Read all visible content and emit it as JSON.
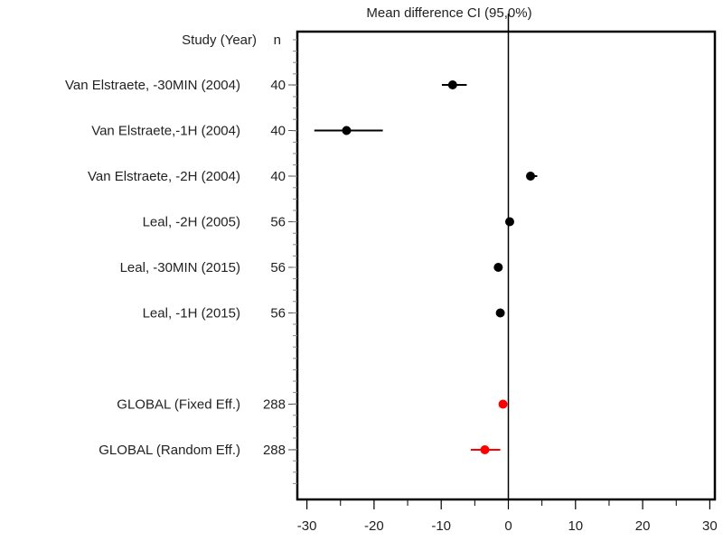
{
  "chart_data": {
    "type": "forest",
    "title": "Mean difference CI  (95,0%)",
    "header": {
      "study": "Study  (Year)",
      "n": "n"
    },
    "xlim": [
      -32,
      31
    ],
    "xticks": [
      -30,
      -20,
      -10,
      0,
      10,
      20,
      30
    ],
    "xtick_labels": [
      "-30",
      "-20",
      "-10",
      "0",
      "10",
      "20",
      "30"
    ],
    "reference_line": 0,
    "studies": [
      {
        "label": "Van Elstraete, -30MIN (2004)",
        "n": "40",
        "mean": -8.3,
        "lo": -9.9,
        "hi": -6.2,
        "color": "#000000"
      },
      {
        "label": "Van Elstraete,-1H (2004)",
        "n": "40",
        "mean": -24.1,
        "lo": -28.9,
        "hi": -18.7,
        "color": "#000000"
      },
      {
        "label": "Van Elstraete, -2H (2004)",
        "n": "40",
        "mean": 3.3,
        "lo": 2.8,
        "hi": 4.3,
        "color": "#000000"
      },
      {
        "label": "Leal, -2H (2005)",
        "n": "56",
        "mean": 0.2,
        "lo": -0.1,
        "hi": 0.5,
        "color": "#000000"
      },
      {
        "label": "Leal, -30MIN (2015)",
        "n": "56",
        "mean": -1.5,
        "lo": -1.8,
        "hi": -1.2,
        "color": "#000000"
      },
      {
        "label": "Leal, -1H (2015)",
        "n": "56",
        "mean": -1.2,
        "lo": -1.5,
        "hi": -0.9,
        "color": "#000000"
      }
    ],
    "pooled": [
      {
        "label": "GLOBAL (Fixed Eff.)",
        "n": "288",
        "mean": -0.8,
        "lo": -1.3,
        "hi": -0.4,
        "color": "#ff0000"
      },
      {
        "label": "GLOBAL (Random Eff.)",
        "n": "288",
        "mean": -3.5,
        "lo": -5.6,
        "hi": -1.2,
        "color": "#ff0000"
      }
    ]
  }
}
